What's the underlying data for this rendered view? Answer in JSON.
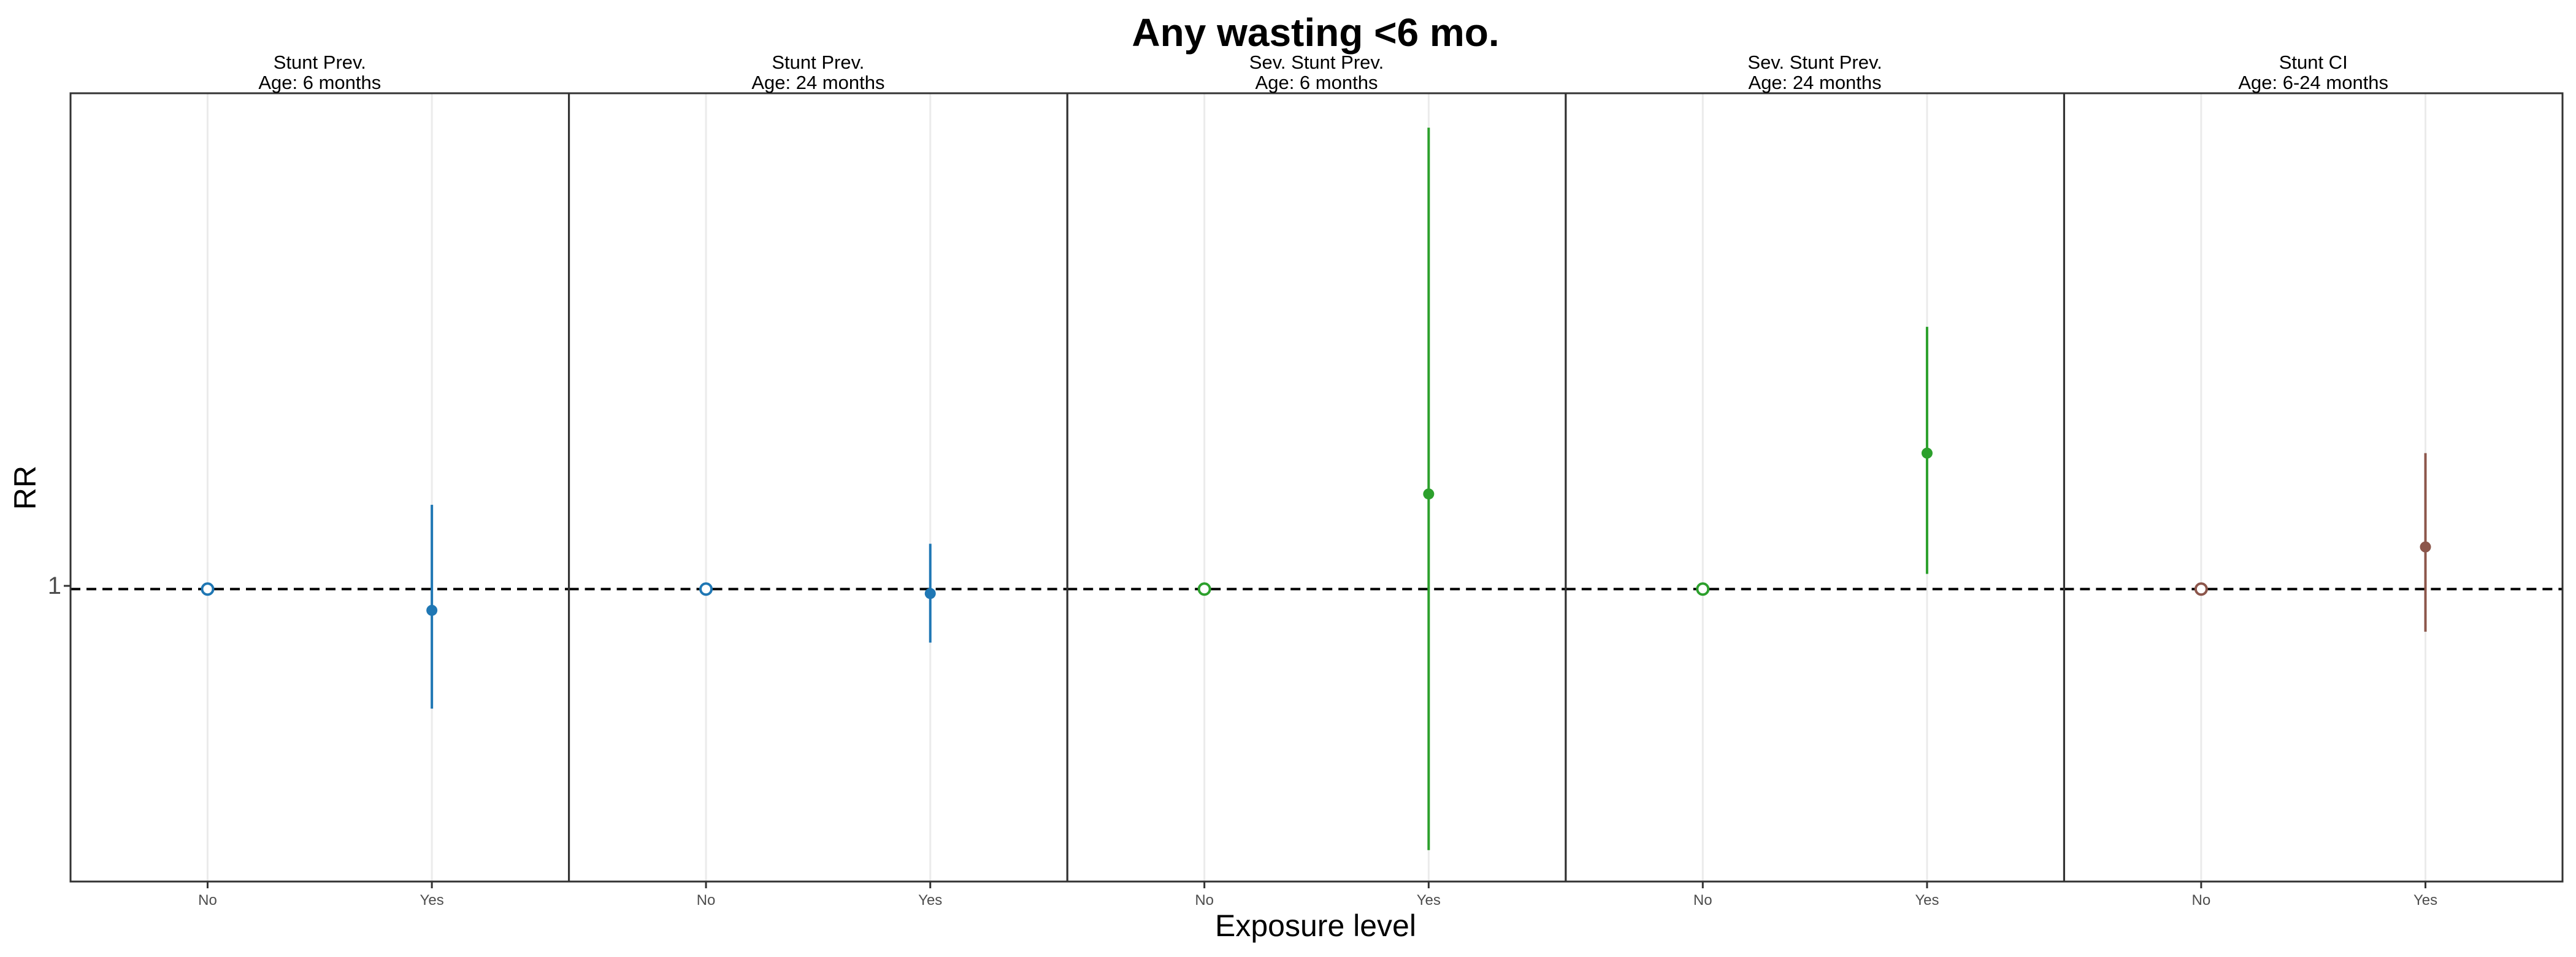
{
  "chart_data": {
    "type": "scatter",
    "title": "Any wasting  <6 mo.",
    "xlabel": "Exposure level",
    "ylabel": "RR",
    "y_scale": "log",
    "y_ticks": [
      1
    ],
    "y_tick_labels": [
      "1"
    ],
    "ylim": [
      0.516,
      3.07
    ],
    "reference_line": 1,
    "categories": [
      "No",
      "Yes"
    ],
    "panels": [
      {
        "strip_line1": "Stunt Prev.",
        "strip_line2": "Age: 6 months",
        "color": "#1f77b4",
        "points": [
          {
            "x": "No",
            "estimate": 1.0,
            "lower": 1.0,
            "upper": 1.0,
            "reference": true
          },
          {
            "x": "Yes",
            "estimate": 0.953,
            "lower": 0.763,
            "upper": 1.21,
            "reference": false
          }
        ]
      },
      {
        "strip_line1": "Stunt Prev.",
        "strip_line2": "Age: 24 months",
        "color": "#1f77b4",
        "points": [
          {
            "x": "No",
            "estimate": 1.0,
            "lower": 1.0,
            "upper": 1.0,
            "reference": true
          },
          {
            "x": "Yes",
            "estimate": 0.99,
            "lower": 0.886,
            "upper": 1.108,
            "reference": false
          }
        ]
      },
      {
        "strip_line1": "Sev. Stunt Prev.",
        "strip_line2": "Age: 6 months",
        "color": "#2ca02c",
        "points": [
          {
            "x": "No",
            "estimate": 1.0,
            "lower": 1.0,
            "upper": 1.0,
            "reference": true
          },
          {
            "x": "Yes",
            "estimate": 1.24,
            "lower": 0.554,
            "upper": 2.84,
            "reference": false
          }
        ]
      },
      {
        "strip_line1": "Sev. Stunt Prev.",
        "strip_line2": "Age: 24 months",
        "color": "#2ca02c",
        "points": [
          {
            "x": "No",
            "estimate": 1.0,
            "lower": 1.0,
            "upper": 1.0,
            "reference": true
          },
          {
            "x": "Yes",
            "estimate": 1.36,
            "lower": 1.035,
            "upper": 1.81,
            "reference": false
          }
        ]
      },
      {
        "strip_line1": "Stunt CI",
        "strip_line2": "Age: 6-24 months",
        "color": "#8c564b",
        "points": [
          {
            "x": "No",
            "estimate": 1.0,
            "lower": 1.0,
            "upper": 1.0,
            "reference": true
          },
          {
            "x": "Yes",
            "estimate": 1.1,
            "lower": 0.908,
            "upper": 1.36,
            "reference": false
          }
        ]
      }
    ]
  }
}
